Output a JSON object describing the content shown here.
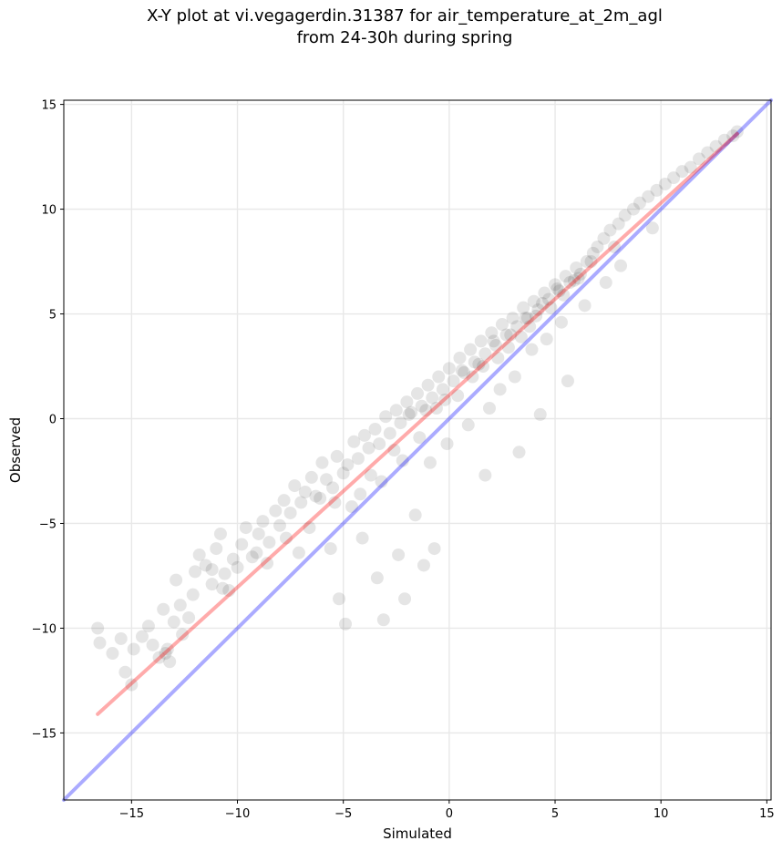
{
  "chart_data": {
    "type": "scatter",
    "title_line1": "X-Y plot at vi.vegagerdin.31387 for air_temperature_at_2m_agl",
    "title_line2": "from 24-30h during spring",
    "xlabel": "Simulated",
    "ylabel": "Observed",
    "xlim": [
      -18.2,
      15.2
    ],
    "ylim": [
      -18.2,
      15.2
    ],
    "xticks": [
      -15,
      -10,
      -5,
      0,
      5,
      10,
      15
    ],
    "yticks": [
      -15,
      -10,
      -5,
      0,
      5,
      10,
      15
    ],
    "xtick_labels": [
      "−15",
      "−10",
      "−5",
      "0",
      "5",
      "10",
      "15"
    ],
    "ytick_labels": [
      "−15",
      "−10",
      "−5",
      "0",
      "5",
      "10",
      "15"
    ],
    "grid": true,
    "colors": {
      "points": "#000000",
      "fit_line": "#ff0000",
      "identity_line": "#0000ff"
    },
    "fit_line": {
      "x": [
        -16.6,
        13.6
      ],
      "y": [
        -14.1,
        13.6
      ]
    },
    "identity_line": {
      "x": [
        -18.2,
        15.2
      ],
      "y": [
        -18.2,
        15.2
      ]
    },
    "points": {
      "x": [
        -16.6,
        -16.5,
        -15.9,
        -15.5,
        -15.3,
        -15.0,
        -14.9,
        -14.5,
        -14.2,
        -14.0,
        -13.7,
        -13.5,
        -13.3,
        -13.2,
        -13.0,
        -12.9,
        -12.7,
        -12.6,
        -12.3,
        -12.1,
        -12.0,
        -11.8,
        -11.5,
        -11.2,
        -11.0,
        -10.8,
        -10.6,
        -10.4,
        -10.2,
        -10.0,
        -9.8,
        -9.6,
        -9.3,
        -9.0,
        -8.8,
        -8.5,
        -8.2,
        -8.0,
        -7.8,
        -7.5,
        -7.3,
        -7.0,
        -6.8,
        -6.5,
        -6.3,
        -6.0,
        -5.8,
        -5.5,
        -5.3,
        -5.0,
        -4.8,
        -4.5,
        -4.3,
        -4.0,
        -3.8,
        -3.5,
        -3.3,
        -3.0,
        -2.8,
        -2.5,
        -2.3,
        -2.0,
        -1.8,
        -1.5,
        -1.3,
        -1.0,
        -0.8,
        -0.5,
        -0.3,
        0.0,
        0.2,
        0.5,
        0.7,
        1.0,
        1.2,
        1.5,
        1.7,
        2.0,
        2.2,
        2.5,
        2.7,
        3.0,
        3.2,
        3.5,
        3.7,
        4.0,
        4.2,
        4.5,
        4.7,
        5.0,
        5.2,
        5.5,
        5.7,
        6.0,
        6.2,
        6.5,
        6.8,
        7.0,
        7.3,
        7.6,
        8.0,
        8.3,
        8.7,
        9.0,
        9.4,
        9.8,
        10.2,
        10.6,
        11.0,
        11.4,
        11.8,
        12.2,
        12.6,
        13.0,
        13.4,
        13.6,
        -13.4,
        -11.2,
        -9.1,
        -7.7,
        -6.1,
        -4.6,
        -3.7,
        -2.6,
        -1.9,
        -1.1,
        -0.2,
        0.6,
        1.4,
        2.1,
        2.9,
        3.6,
        4.4,
        5.1,
        5.9,
        6.7,
        -5.2,
        -4.9,
        -3.1,
        -2.1,
        -1.2,
        -0.7,
        1.7,
        3.3,
        4.3,
        5.6,
        -7.1,
        -5.6,
        -4.1,
        -3.4,
        -2.4,
        -1.6,
        -0.9,
        -0.1,
        0.9,
        1.9,
        2.4,
        3.1,
        3.9,
        4.6,
        5.3,
        6.4,
        7.4,
        8.1,
        -10.7,
        -8.6,
        -6.6,
        -5.4,
        -4.2,
        -3.2,
        -2.2,
        -1.4,
        -0.6,
        0.4,
        1.1,
        1.6,
        2.3,
        2.8,
        3.4,
        3.8,
        4.1,
        4.8,
        5.4,
        6.1,
        7.8,
        9.6
      ],
      "y": [
        -10.0,
        -10.7,
        -11.2,
        -10.5,
        -12.1,
        -12.7,
        -11.0,
        -10.4,
        -9.9,
        -10.8,
        -11.4,
        -9.1,
        -11.0,
        -11.6,
        -9.7,
        -7.7,
        -8.9,
        -10.3,
        -9.5,
        -8.4,
        -7.3,
        -6.5,
        -7.0,
        -7.9,
        -6.2,
        -5.5,
        -7.4,
        -8.2,
        -6.7,
        -7.1,
        -6.0,
        -5.2,
        -6.6,
        -5.5,
        -4.9,
        -5.9,
        -4.4,
        -5.1,
        -3.9,
        -4.5,
        -3.2,
        -4.0,
        -3.5,
        -2.8,
        -3.7,
        -2.1,
        -2.9,
        -3.3,
        -1.8,
        -2.6,
        -2.2,
        -1.1,
        -1.9,
        -0.8,
        -1.4,
        -0.5,
        -1.2,
        0.1,
        -0.7,
        0.4,
        -0.2,
        0.8,
        0.3,
        1.2,
        0.6,
        1.6,
        1.0,
        2.0,
        1.4,
        2.4,
        1.8,
        2.9,
        2.2,
        3.3,
        2.7,
        3.7,
        3.1,
        4.1,
        3.5,
        4.5,
        4.0,
        4.8,
        4.4,
        5.3,
        4.8,
        5.6,
        5.2,
        6.0,
        5.7,
        6.4,
        6.1,
        6.8,
        6.5,
        7.2,
        6.9,
        7.5,
        7.9,
        8.2,
        8.6,
        9.0,
        9.3,
        9.7,
        10.0,
        10.3,
        10.6,
        10.9,
        11.2,
        11.5,
        11.8,
        12.0,
        12.4,
        12.7,
        13.0,
        13.3,
        13.5,
        13.7,
        -11.2,
        -7.2,
        -6.4,
        -5.7,
        -3.8,
        -4.2,
        -2.7,
        -1.5,
        0.2,
        0.4,
        0.9,
        2.3,
        2.6,
        3.7,
        4.0,
        4.8,
        5.5,
        6.2,
        6.6,
        7.5,
        -8.6,
        -9.8,
        -9.6,
        -8.6,
        -7.0,
        -6.2,
        -2.7,
        -1.6,
        0.2,
        1.8,
        -6.4,
        -6.2,
        -5.7,
        -7.6,
        -6.5,
        -4.6,
        -2.1,
        -1.2,
        -0.3,
        0.5,
        1.4,
        2.0,
        3.3,
        3.8,
        4.6,
        5.4,
        6.5,
        7.3,
        -8.1,
        -6.9,
        -5.2,
        -4.0,
        -3.6,
        -3.0,
        -2.0,
        -0.9,
        0.5,
        1.1,
        2.0,
        2.5,
        2.9,
        3.4,
        3.9,
        4.4,
        4.9,
        5.3,
        5.9,
        6.7,
        8.2,
        9.1
      ]
    }
  }
}
